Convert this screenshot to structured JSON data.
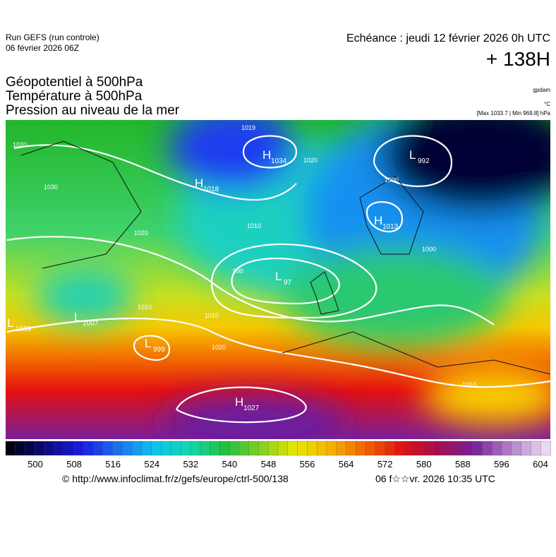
{
  "header": {
    "run": "Run GEFS (run controle)",
    "run_date": "06 février 2026 06Z",
    "valid": "Echéance : jeudi 12 février 2026 0h UTC",
    "lead": "+ 138H",
    "fields": [
      "Géopotentiel à 500hPa",
      "Température à 500hPa",
      "Pression au niveau de la mer"
    ],
    "units": [
      "gpdam",
      "°C",
      "[Max 1033.7 | Min 969.8] hPa"
    ]
  },
  "map": {
    "centers": [
      {
        "kind": "H",
        "value": "1034"
      },
      {
        "kind": "L",
        "value": "992"
      },
      {
        "kind": "H",
        "value": "1013"
      },
      {
        "kind": "L",
        "value": "97"
      },
      {
        "kind": "L",
        "value": "1007"
      },
      {
        "kind": "L",
        "value": "1009"
      },
      {
        "kind": "L",
        "value": "999"
      },
      {
        "kind": "H",
        "value": "1027"
      },
      {
        "kind": "H",
        "value": "1018"
      }
    ],
    "isobar_labels": [
      "1020",
      "1019",
      "1030",
      "1020",
      "1010",
      "1000",
      "990",
      "1010",
      "1020",
      "1000",
      "1010",
      "1010",
      "1020"
    ]
  },
  "legend": {
    "labels": [
      "500",
      "508",
      "516",
      "524",
      "532",
      "540",
      "548",
      "556",
      "564",
      "572",
      "580",
      "588",
      "596",
      "604"
    ]
  },
  "footer": {
    "source": "© http://www.infoclimat.fr/z/gefs/europe/ctrl-500/138",
    "generated": "06 f☆☆vr. 2026 10:35 UTC"
  }
}
